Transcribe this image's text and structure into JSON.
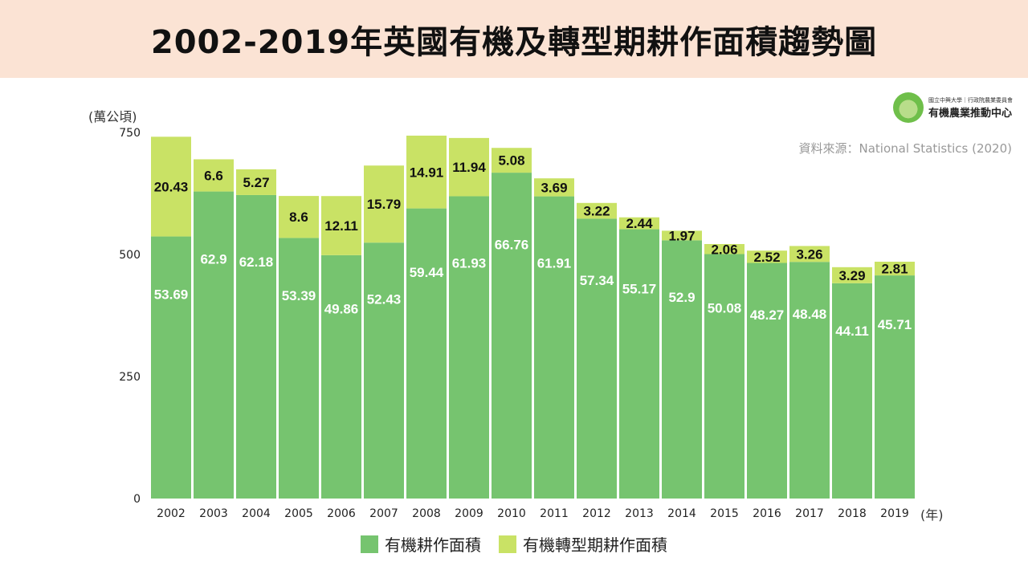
{
  "title": "2002-2019年英國有機及轉型期耕作面積趨勢圖",
  "source": "資料來源：National Statistics (2020)",
  "logo": {
    "small": "國立中興大學｜行政院農業委員會",
    "big": "有機農業推動中心"
  },
  "colors": {
    "organic": "#76c46f",
    "conversion": "#c9e265",
    "banner": "#fbe3d4"
  },
  "chart_data": {
    "type": "bar",
    "stacked": true,
    "title": "2002-2019年英國有機及轉型期耕作面積趨勢圖",
    "ylabel": "(萬公頃)",
    "xlabel": "(年)",
    "ylim": [
      0,
      750
    ],
    "yticks": [
      0,
      250,
      500,
      750
    ],
    "grid": false,
    "legend": "bottom",
    "categories": [
      "2002",
      "2003",
      "2004",
      "2005",
      "2006",
      "2007",
      "2008",
      "2009",
      "2010",
      "2011",
      "2012",
      "2013",
      "2014",
      "2015",
      "2016",
      "2017",
      "2018",
      "2019"
    ],
    "series": [
      {
        "name": "有機耕作面積",
        "values": [
          53.69,
          62.9,
          62.18,
          53.39,
          49.86,
          52.43,
          59.44,
          61.93,
          66.76,
          61.91,
          57.34,
          55.17,
          52.9,
          50.08,
          48.27,
          48.48,
          44.11,
          45.71
        ]
      },
      {
        "name": "有機轉型期耕作面積",
        "values": [
          20.43,
          6.6,
          5.27,
          8.6,
          12.11,
          15.79,
          14.91,
          11.94,
          5.08,
          3.69,
          3.22,
          2.44,
          1.97,
          2.06,
          2.52,
          3.26,
          3.29,
          2.81
        ]
      }
    ]
  }
}
